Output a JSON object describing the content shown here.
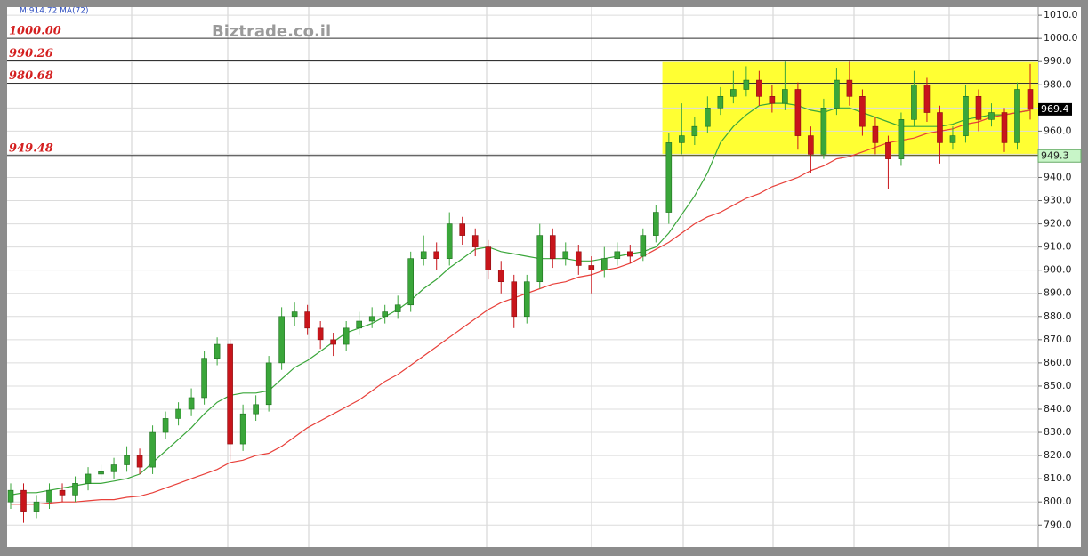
{
  "chart_data": {
    "type": "candlestick",
    "legend_text": "M:914.72  MA(72)",
    "watermark": "Biztrade.co.il",
    "ylim": [
      780.5,
      1013.5
    ],
    "yticks": [
      {
        "value": 790,
        "label": "790.0"
      },
      {
        "value": 800,
        "label": "800.0"
      },
      {
        "value": 810,
        "label": "810.0"
      },
      {
        "value": 820,
        "label": "820.0"
      },
      {
        "value": 830,
        "label": "830.0"
      },
      {
        "value": 840,
        "label": "840.0"
      },
      {
        "value": 850,
        "label": "850.0"
      },
      {
        "value": 860,
        "label": "860.0"
      },
      {
        "value": 870,
        "label": "870.0"
      },
      {
        "value": 880,
        "label": "880.0"
      },
      {
        "value": 890,
        "label": "890.0"
      },
      {
        "value": 900,
        "label": "900.0"
      },
      {
        "value": 910,
        "label": "910.0"
      },
      {
        "value": 920,
        "label": "920.0"
      },
      {
        "value": 930,
        "label": "930.0"
      },
      {
        "value": 940,
        "label": "940.0"
      },
      {
        "value": 950,
        "label": "950.0"
      },
      {
        "value": 960,
        "label": "960.0"
      },
      {
        "value": 970,
        "label": "970.0"
      },
      {
        "value": 980,
        "label": "980.0"
      },
      {
        "value": 990,
        "label": "990.0"
      },
      {
        "value": 1000,
        "label": "1000.0"
      },
      {
        "value": 1010,
        "label": "1010.0"
      }
    ],
    "grid": true,
    "up_color": "#3aa63a",
    "down_color": "#c8151b",
    "open": [
      800,
      805,
      796,
      800,
      805,
      803,
      808,
      812,
      813,
      816,
      820,
      815,
      830,
      836,
      840,
      845,
      862,
      868,
      825,
      838,
      842,
      860,
      880,
      882,
      875,
      870,
      868,
      875,
      878,
      880,
      882,
      885,
      905,
      908,
      905,
      920,
      915,
      910,
      900,
      895,
      880,
      895,
      915,
      905,
      908,
      902,
      900,
      905,
      908,
      906,
      915,
      925,
      955,
      958,
      962,
      970,
      975,
      978,
      982,
      975,
      972,
      978,
      958,
      950,
      970,
      982,
      975,
      962,
      955,
      948,
      965,
      980,
      968,
      955,
      958,
      975,
      965,
      968,
      955,
      978
    ],
    "high": [
      808,
      808,
      803,
      808,
      808,
      811,
      815,
      816,
      819,
      824,
      823,
      833,
      839,
      843,
      849,
      865,
      871,
      870,
      842,
      846,
      863,
      884,
      886,
      885,
      878,
      873,
      878,
      882,
      884,
      885,
      889,
      908,
      915,
      912,
      925,
      923,
      918,
      913,
      904,
      898,
      898,
      920,
      918,
      912,
      911,
      906,
      910,
      912,
      911,
      918,
      928,
      959,
      972,
      966,
      975,
      979,
      986,
      988,
      986,
      980,
      990,
      981,
      962,
      974,
      987,
      990,
      978,
      966,
      958,
      968,
      986,
      983,
      971,
      962,
      980,
      978,
      972,
      970,
      981,
      989
    ],
    "low": [
      797,
      791,
      793,
      797,
      800,
      800,
      805,
      809,
      810,
      813,
      812,
      812,
      827,
      833,
      837,
      842,
      859,
      818,
      822,
      835,
      839,
      857,
      876,
      872,
      866,
      863,
      865,
      872,
      875,
      877,
      879,
      882,
      902,
      900,
      902,
      911,
      906,
      896,
      890,
      875,
      877,
      892,
      901,
      902,
      898,
      890,
      897,
      902,
      903,
      904,
      912,
      920,
      950,
      954,
      959,
      967,
      972,
      975,
      971,
      968,
      969,
      952,
      942,
      948,
      967,
      971,
      958,
      950,
      935,
      945,
      962,
      964,
      946,
      952,
      955,
      960,
      962,
      951,
      952,
      965
    ],
    "close": [
      805,
      796,
      800,
      805,
      803,
      808,
      812,
      813,
      816,
      820,
      815,
      830,
      836,
      840,
      845,
      862,
      868,
      825,
      838,
      842,
      860,
      880,
      882,
      875,
      870,
      868,
      875,
      878,
      880,
      882,
      885,
      905,
      908,
      905,
      920,
      915,
      910,
      900,
      895,
      880,
      895,
      915,
      905,
      908,
      902,
      900,
      905,
      908,
      906,
      915,
      925,
      955,
      958,
      962,
      970,
      975,
      978,
      982,
      975,
      972,
      978,
      958,
      950,
      970,
      982,
      975,
      962,
      955,
      948,
      965,
      980,
      968,
      955,
      958,
      975,
      965,
      968,
      955,
      978,
      969.4
    ],
    "series": [
      {
        "color": "#3aa63a",
        "values": [
          803,
          804,
          804,
          805,
          806,
          807,
          808,
          808,
          809,
          810,
          812,
          817,
          822,
          827,
          832,
          838,
          843,
          846,
          847,
          847,
          848,
          853,
          858,
          861,
          865,
          869,
          873,
          875,
          877,
          880,
          883,
          887,
          892,
          896,
          901,
          905,
          909,
          910,
          908,
          907,
          906,
          905,
          905,
          905,
          904,
          904,
          905,
          906,
          907,
          908,
          910,
          916,
          924,
          932,
          942,
          955,
          962,
          967,
          971,
          972,
          972,
          971,
          969,
          968,
          970,
          970,
          968,
          966,
          964,
          962,
          962,
          962,
          962,
          963,
          965,
          966,
          967,
          967,
          968,
          969
        ]
      },
      {
        "color": "#e8403a",
        "values": [
          799,
          799,
          799,
          799.5,
          800,
          800,
          800.5,
          801,
          801,
          802,
          802.5,
          804,
          806,
          808,
          810,
          812,
          814,
          817,
          818,
          820,
          821,
          824,
          828,
          832,
          835,
          838,
          841,
          844,
          848,
          852,
          855,
          859,
          863,
          867,
          871,
          875,
          879,
          883,
          886,
          888,
          890,
          892,
          894,
          895,
          897,
          898,
          900,
          901,
          903,
          906,
          909,
          912,
          916,
          920,
          923,
          925,
          928,
          931,
          933,
          936,
          938,
          940,
          943,
          945,
          948,
          949,
          951,
          953,
          955,
          956,
          957,
          959,
          960,
          961,
          963,
          964,
          966,
          967,
          968,
          969
        ]
      }
    ],
    "levels": [
      {
        "value": 1000,
        "label": "1000.00"
      },
      {
        "value": 990.26,
        "label": "990.26"
      },
      {
        "value": 980.68,
        "label": "980.68"
      },
      {
        "value": 949.48,
        "label": "949.48"
      }
    ],
    "zone": {
      "start": 51,
      "ylim": [
        949.48,
        990.26
      ],
      "color": "#ffff33"
    },
    "markers": [
      {
        "value": 949.3,
        "color": "#c8f5c8"
      }
    ]
  }
}
